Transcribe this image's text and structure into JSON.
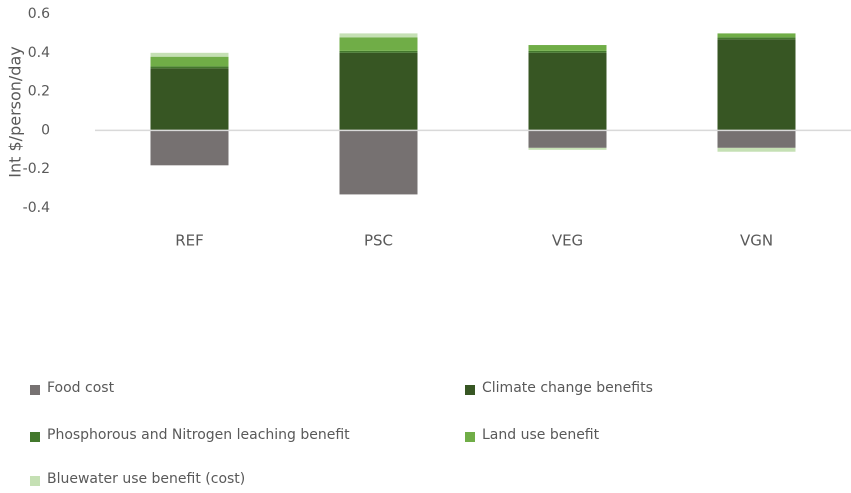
{
  "chart_data": {
    "type": "stacked_bar",
    "y_label": "Int $/person/day",
    "categories": [
      "REF",
      "PSC",
      "VEG",
      "VGN"
    ],
    "series": [
      {
        "name": "Food cost",
        "color": "#767171",
        "values": [
          -0.18,
          -0.33,
          -0.09,
          -0.09
        ]
      },
      {
        "name": "Climate change benefits",
        "color": "#375623",
        "values": [
          0.32,
          0.4,
          0.4,
          0.47
        ]
      },
      {
        "name": "Phosphorous and Nitrogen leaching benefit",
        "color": "#43782c",
        "values": [
          0.01,
          0.01,
          0.01,
          0.01
        ]
      },
      {
        "name": "Land use benefit",
        "color": "#70ad47",
        "values": [
          0.05,
          0.07,
          0.03,
          0.02
        ]
      },
      {
        "name": "Bluewater use benefit (cost)",
        "color": "#c5e0b4",
        "values": [
          0.02,
          0.02,
          -0.01,
          -0.02
        ]
      }
    ],
    "ylim": [
      -0.4,
      0.6
    ],
    "yticks": [
      0.6,
      0.4,
      0.2,
      0,
      -0.2,
      -0.4
    ],
    "grid": false,
    "legend": "bottom"
  }
}
